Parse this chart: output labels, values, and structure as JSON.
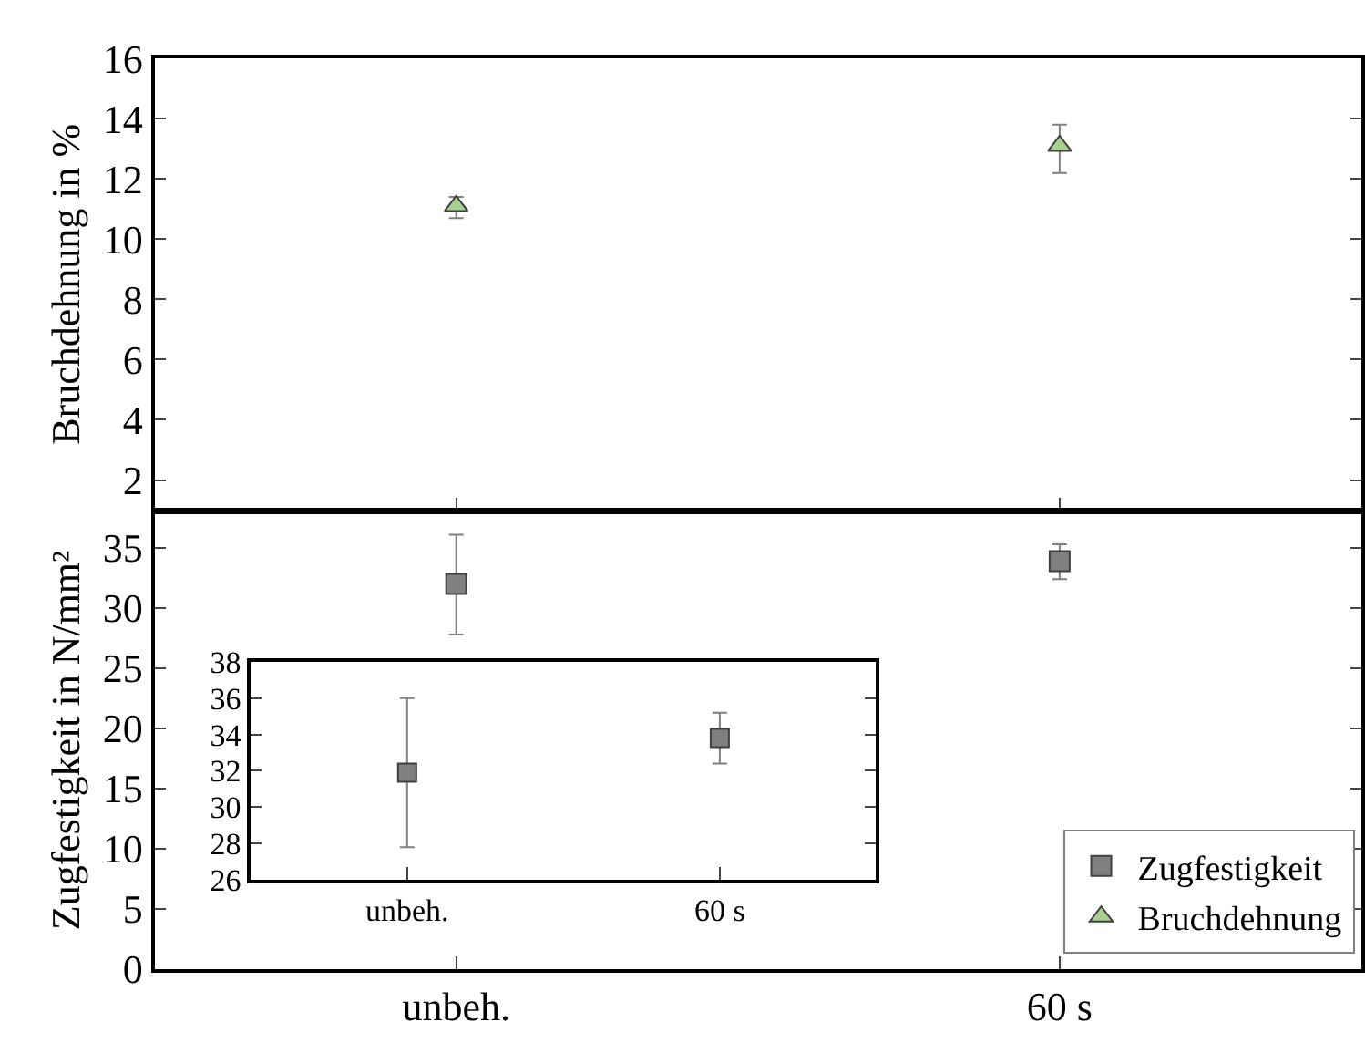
{
  "chart_data": [
    {
      "type": "scatter",
      "ylabel": "Bruchdehnung in %",
      "categories": [
        null,
        null
      ],
      "ylim": [
        1,
        16
      ],
      "yticks": [
        2,
        4,
        6,
        8,
        10,
        12,
        14,
        16
      ],
      "tick_labels": "y",
      "marker": "triangle",
      "legend": "bottom right",
      "grid": false,
      "series": [
        {
          "name": "Bruchdehnung",
          "color": "#a9d18e",
          "values": [
            11.1,
            13.1
          ],
          "errors": [
            [
              10.7,
              11.4
            ],
            [
              12.2,
              13.8
            ]
          ]
        }
      ]
    },
    {
      "type": "scatter",
      "ylabel": "Zugfestigkeit in N/mm²",
      "categories": [
        "unbeh.",
        "60 s"
      ],
      "ylim": [
        0,
        38
      ],
      "yticks": [
        0,
        5,
        10,
        15,
        20,
        25,
        30,
        35
      ],
      "marker": "square",
      "legend": "bottom right",
      "grid": false,
      "series": [
        {
          "name": "Zugfestigkeit",
          "color": "#808080",
          "values": [
            32.0,
            33.9
          ],
          "errors": [
            [
              27.8,
              36.1
            ],
            [
              32.4,
              35.3
            ]
          ]
        }
      ]
    },
    {
      "type": "scatter",
      "categories": [
        "unbeh.",
        "60 s"
      ],
      "ylim": [
        26,
        38
      ],
      "yticks": [
        26,
        28,
        30,
        32,
        34,
        36,
        38
      ],
      "marker": "square",
      "grid": false,
      "series": [
        {
          "color": "#808080",
          "values": [
            31.9,
            33.8
          ],
          "errors": [
            [
              27.8,
              36.0
            ],
            [
              32.4,
              35.2
            ]
          ]
        }
      ]
    }
  ]
}
